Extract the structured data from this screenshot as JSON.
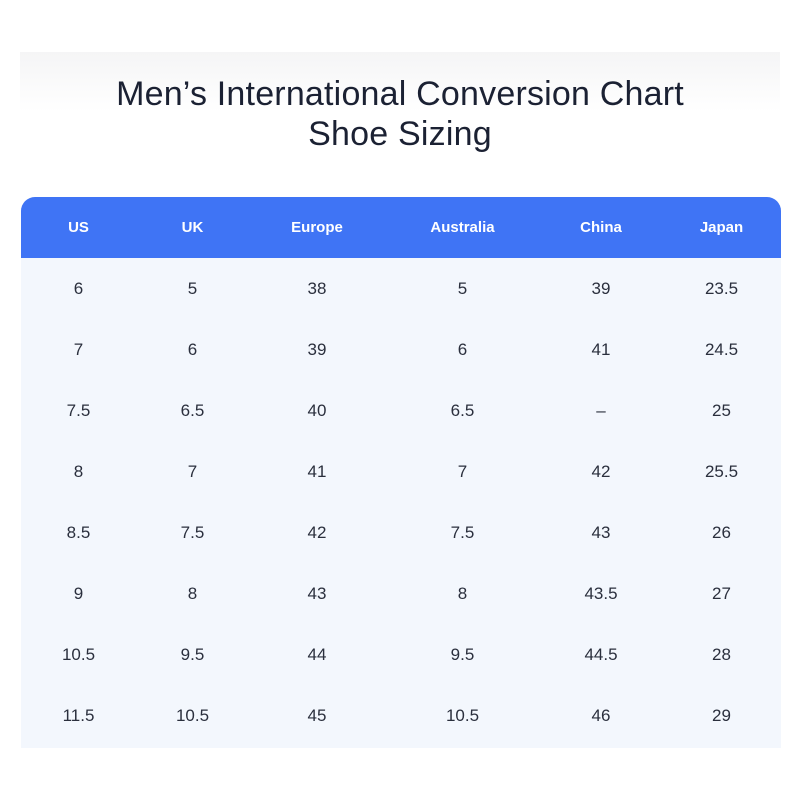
{
  "title": {
    "line1": "Men’s International Conversion Chart",
    "line2": "Shoe Sizing"
  },
  "table": {
    "headers": [
      "US",
      "UK",
      "Europe",
      "Australia",
      "China",
      "Japan"
    ],
    "rows": [
      [
        "6",
        "5",
        "38",
        "5",
        "39",
        "23.5"
      ],
      [
        "7",
        "6",
        "39",
        "6",
        "41",
        "24.5"
      ],
      [
        "7.5",
        "6.5",
        "40",
        "6.5",
        "–",
        "25"
      ],
      [
        "8",
        "7",
        "41",
        "7",
        "42",
        "25.5"
      ],
      [
        "8.5",
        "7.5",
        "42",
        "7.5",
        "43",
        "26"
      ],
      [
        "9",
        "8",
        "43",
        "8",
        "43.5",
        "27"
      ],
      [
        "10.5",
        "9.5",
        "44",
        "9.5",
        "44.5",
        "28"
      ],
      [
        "11.5",
        "10.5",
        "45",
        "10.5",
        "46",
        "29"
      ]
    ]
  },
  "colors": {
    "header_bg": "#3f74f5",
    "body_bg": "#f3f7fd",
    "title_text": "#1b2133"
  }
}
